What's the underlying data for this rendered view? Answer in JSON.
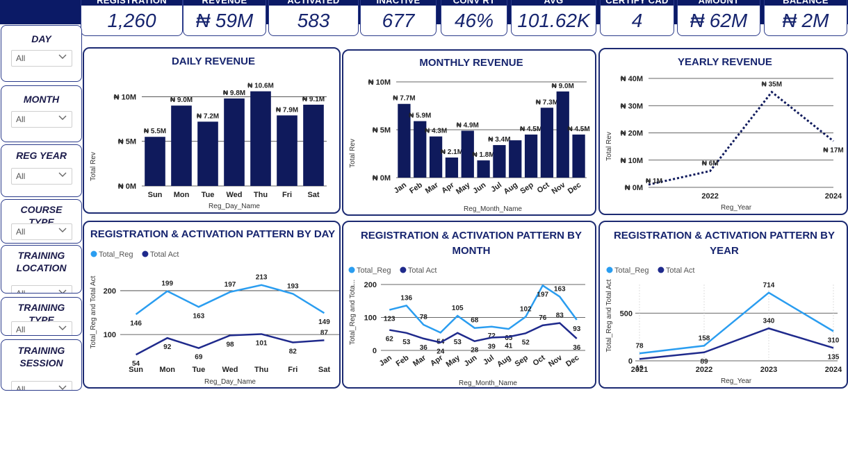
{
  "colors": {
    "navy": "#0b1a66",
    "bar": "#0f1a5c",
    "reg": "#2a9df0",
    "act": "#1f2a8c"
  },
  "kpis": [
    {
      "label": "Registration",
      "value": "1,260"
    },
    {
      "label": "Revenue",
      "value": "₦ 59M"
    },
    {
      "label": "Activated",
      "value": "583"
    },
    {
      "label": "Inactive",
      "value": "677"
    },
    {
      "label": "Conv Rt",
      "value": "46%"
    },
    {
      "label": "Avg",
      "value": "101.62K"
    },
    {
      "label": "Certify Cad",
      "value": "4"
    },
    {
      "label": "Amount",
      "value": "₦ 62M"
    },
    {
      "label": "Balance",
      "value": "₦ 2M"
    }
  ],
  "slicers": [
    {
      "title": "DAY",
      "value": "All"
    },
    {
      "title": "MONTH",
      "value": "All"
    },
    {
      "title": "REG YEAR",
      "value": "All"
    },
    {
      "title": "COURSE TYPE",
      "value": "All"
    },
    {
      "title": "TRAINING LOCATION",
      "value": "All"
    },
    {
      "title": "TRAINING TYPE",
      "value": "All"
    },
    {
      "title": "TRAINING SESSION",
      "value": "All"
    }
  ],
  "chart_data": [
    {
      "id": "daily",
      "type": "bar",
      "title": "DAILY REVENUE",
      "xlabel": "Reg_Day_Name",
      "ylabel": "Total Rev",
      "categories": [
        "Sun",
        "Mon",
        "Tue",
        "Wed",
        "Thu",
        "Fri",
        "Sat"
      ],
      "values": [
        5.5,
        9.0,
        7.2,
        9.8,
        10.6,
        7.9,
        9.1
      ],
      "labels": [
        "₦ 5.5M",
        "₦ 9.0M",
        "₦ 7.2M",
        "₦ 9.8M",
        "₦ 10.6M",
        "₦ 7.9M",
        "₦ 9.1M"
      ],
      "yticks": [
        0,
        5,
        10
      ],
      "ytick_labels": [
        "₦ 0M",
        "₦ 5M",
        "₦ 10M"
      ],
      "ylim": [
        0,
        11.5
      ]
    },
    {
      "id": "monthly",
      "type": "bar",
      "title": "MONTHLY REVENUE",
      "xlabel": "Reg_Month_Name",
      "ylabel": "Total Rev",
      "categories": [
        "Jan",
        "Feb",
        "Mar",
        "Apr",
        "May",
        "Jun",
        "Jul",
        "Aug",
        "Sep",
        "Oct",
        "Nov",
        "Dec"
      ],
      "values": [
        7.7,
        5.9,
        4.3,
        2.1,
        4.9,
        1.8,
        3.4,
        3.9,
        4.5,
        7.3,
        9.0,
        4.5
      ],
      "labels": [
        "₦ 7.7M",
        "₦ 5.9M",
        "₦ 4.3M",
        "₦ 2.1M",
        "₦ 4.9M",
        "₦ 1.8M",
        "₦ 3.4M",
        "",
        "₦ 4.5M",
        "₦ 7.3M",
        "₦ 9.0M",
        "₦ 4.5M"
      ],
      "yticks": [
        0,
        5,
        10
      ],
      "ytick_labels": [
        "₦ 0M",
        "₦ 5M",
        "₦ 10M"
      ],
      "ylim": [
        0,
        10
      ]
    },
    {
      "id": "yearly",
      "type": "line",
      "title": "YEARLY REVENUE",
      "xlabel": "Reg_Year",
      "ylabel": "Total Rev",
      "x": [
        2021,
        2022,
        2023,
        2024
      ],
      "xtick_labels": [
        "",
        "2022",
        "",
        "2024"
      ],
      "values": [
        1,
        6,
        35,
        17
      ],
      "labels": [
        "₦ 1M",
        "₦ 6M",
        "₦ 35M",
        "₦ 17M"
      ],
      "yticks": [
        0,
        10,
        20,
        30,
        40
      ],
      "ytick_labels": [
        "₦ 0M",
        "₦ 10M",
        "₦ 20M",
        "₦ 30M",
        "₦ 40M"
      ],
      "ylim": [
        0,
        40
      ],
      "line_style": "dotted"
    },
    {
      "id": "pattern_day",
      "type": "line",
      "title": "REGISTRATION & ACTIVATION PATTERN BY DAY",
      "xlabel": "Reg_Day_Name",
      "ylabel": "Total_Reg and Total Act",
      "categories": [
        "Sun",
        "Mon",
        "Tue",
        "Wed",
        "Thu",
        "Fri",
        "Sat"
      ],
      "series": [
        {
          "name": "Total_Reg",
          "values": [
            146,
            199,
            163,
            197,
            213,
            193,
            149
          ]
        },
        {
          "name": "Total Act",
          "values": [
            54,
            92,
            69,
            98,
            101,
            82,
            87
          ]
        }
      ],
      "yticks": [
        100,
        200
      ],
      "ylim": [
        40,
        230
      ]
    },
    {
      "id": "pattern_month",
      "type": "line",
      "title": "REGISTRATION & ACTIVATION PATTERN BY MONTH",
      "xlabel": "Reg_Month_Name",
      "ylabel": "Total_Reg and Tota...",
      "categories": [
        "Jan",
        "Feb",
        "Mar",
        "Apr",
        "May",
        "Jun",
        "Jul",
        "Aug",
        "Sep",
        "Oct",
        "Nov",
        "Dec"
      ],
      "series": [
        {
          "name": "Total_Reg",
          "values": [
            123,
            136,
            78,
            54,
            105,
            68,
            72,
            65,
            102,
            197,
            163,
            93
          ]
        },
        {
          "name": "Total Act",
          "values": [
            62,
            53,
            36,
            24,
            53,
            28,
            39,
            41,
            52,
            76,
            83,
            36
          ]
        }
      ],
      "yticks": [
        0,
        100,
        200
      ],
      "ylim": [
        0,
        200
      ]
    },
    {
      "id": "pattern_year",
      "type": "line",
      "title": "REGISTRATION & ACTIVATION PATTERN BY YEAR",
      "xlabel": "Reg_Year",
      "ylabel": "Total_Reg and Total Act",
      "categories": [
        "2021",
        "2022",
        "2023",
        "2024"
      ],
      "series": [
        {
          "name": "Total_Reg",
          "values": [
            78,
            158,
            714,
            310
          ]
        },
        {
          "name": "Total Act",
          "values": [
            19,
            89,
            340,
            135
          ]
        }
      ],
      "yticks": [
        0,
        500
      ],
      "ylim": [
        0,
        800
      ]
    }
  ]
}
